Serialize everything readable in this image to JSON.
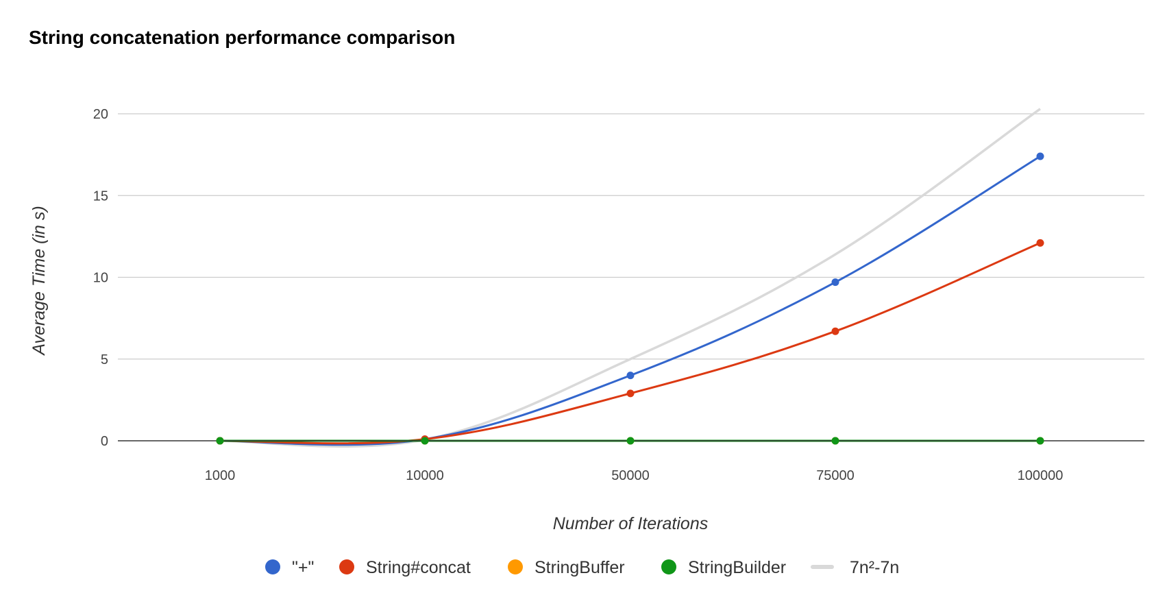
{
  "chart_data": {
    "type": "line",
    "title": "String concatenation performance comparison",
    "xlabel": "Number of Iterations",
    "ylabel": "Average Time (in s)",
    "categories": [
      "1000",
      "10000",
      "50000",
      "75000",
      "100000"
    ],
    "y_ticks": [
      "0",
      "5",
      "10",
      "15",
      "20"
    ],
    "ylim": [
      0,
      20
    ],
    "grid": true,
    "legend_position": "bottom",
    "series": [
      {
        "name": "\"+\"",
        "values": [
          0.0,
          0.1,
          4.0,
          9.7,
          17.4
        ],
        "color": "#3366cc",
        "markers": true
      },
      {
        "name": "String#concat",
        "values": [
          0.0,
          0.1,
          2.9,
          6.7,
          12.1
        ],
        "color": "#dc3912",
        "markers": true
      },
      {
        "name": "StringBuffer",
        "values": [
          0.0,
          0.0,
          0.0,
          0.0,
          0.0
        ],
        "color": "#ff9900",
        "markers": true
      },
      {
        "name": "StringBuilder",
        "values": [
          0.0,
          0.0,
          0.0,
          0.0,
          0.0
        ],
        "color": "#109618",
        "markers": true
      },
      {
        "name": "7n²-7n",
        "values": [
          0.0,
          0.07,
          5.0,
          11.4,
          20.3
        ],
        "color": "#d9d9d9",
        "markers": false
      }
    ]
  }
}
